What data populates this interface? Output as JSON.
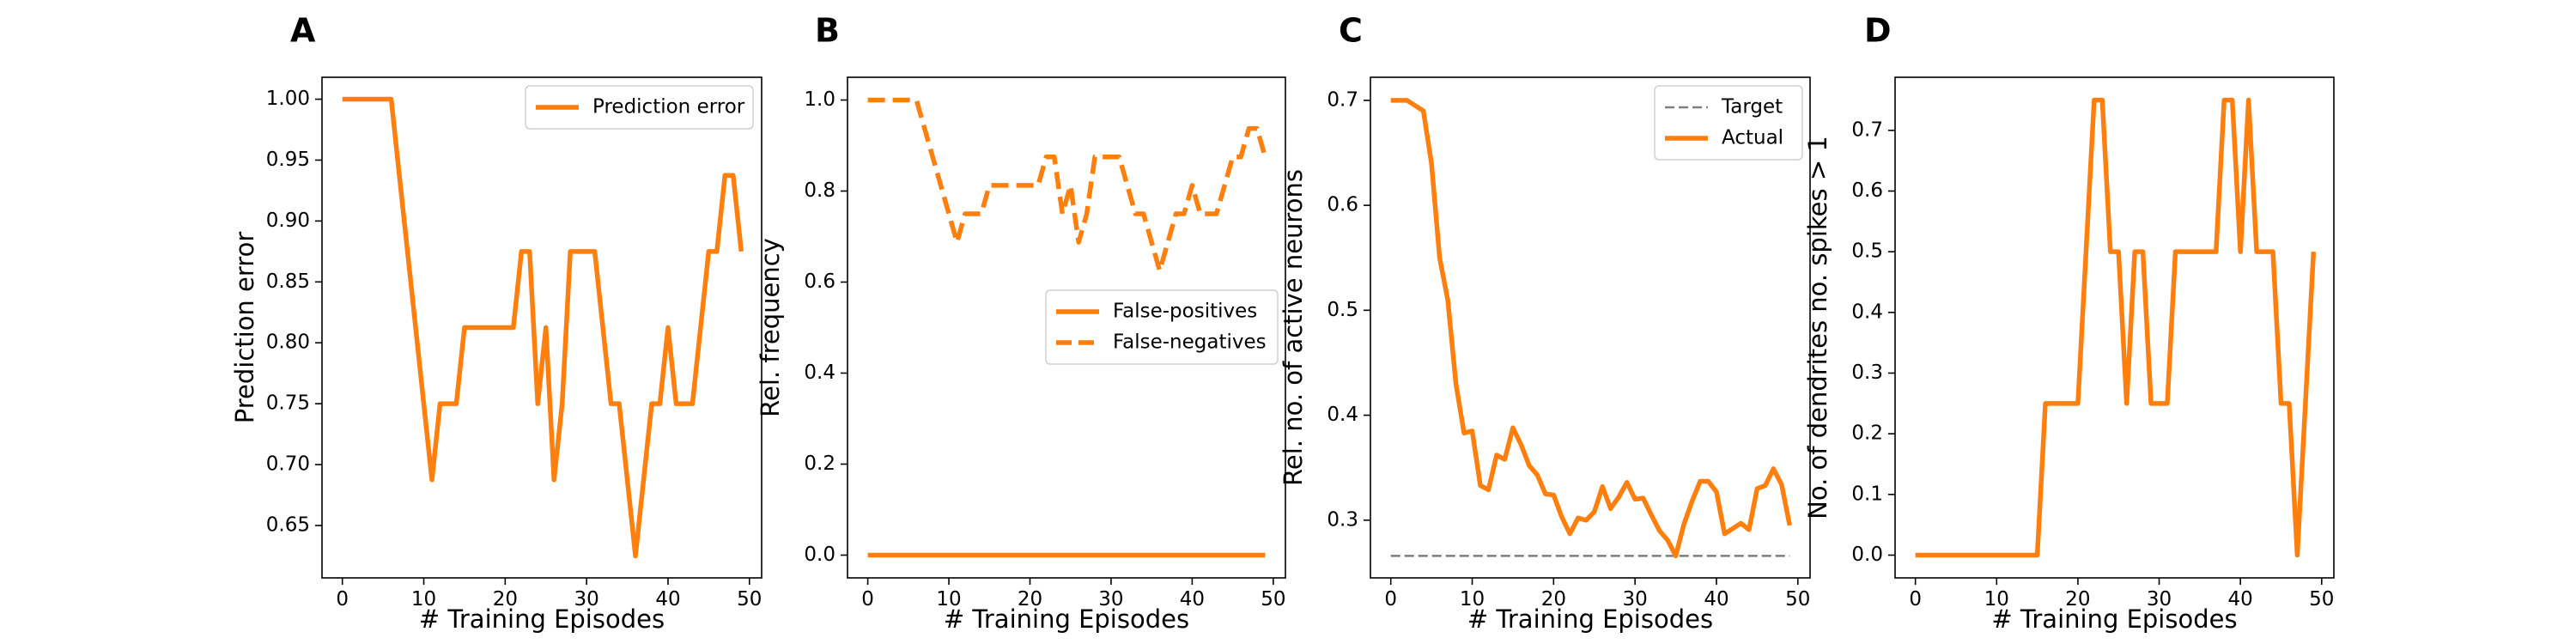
{
  "chart_data": [
    {
      "letter": "A",
      "type": "line",
      "xlabel": "# Training Episodes",
      "ylabel": "Prediction error",
      "xlim": [
        -2.5,
        51.5
      ],
      "ylim": [
        0.607,
        1.018
      ],
      "xticks": [
        0,
        10,
        20,
        30,
        40,
        50
      ],
      "yticks": [
        0.65,
        0.7,
        0.75,
        0.8,
        0.85,
        0.9,
        0.95,
        1.0
      ],
      "ytick_labels": [
        "0.65",
        "0.70",
        "0.75",
        "0.80",
        "0.85",
        "0.90",
        "0.95",
        "1.00"
      ],
      "grid": false,
      "legend_position": "top-right",
      "series": [
        {
          "name": "Prediction error",
          "color": "#ff7f0e",
          "dash": "solid",
          "x": [
            0,
            1,
            2,
            3,
            4,
            5,
            6,
            7,
            8,
            9,
            10,
            11,
            12,
            13,
            14,
            15,
            16,
            17,
            18,
            19,
            20,
            21,
            22,
            23,
            24,
            25,
            26,
            27,
            28,
            29,
            30,
            31,
            32,
            33,
            34,
            35,
            36,
            37,
            38,
            39,
            40,
            41,
            42,
            43,
            44,
            45,
            46,
            47,
            48,
            49
          ],
          "y": [
            1.0,
            1.0,
            1.0,
            1.0,
            1.0,
            1.0,
            1.0,
            0.9375,
            0.875,
            0.8125,
            0.75,
            0.6875,
            0.75,
            0.75,
            0.75,
            0.8125,
            0.8125,
            0.8125,
            0.8125,
            0.8125,
            0.8125,
            0.8125,
            0.875,
            0.875,
            0.75,
            0.8125,
            0.6875,
            0.75,
            0.875,
            0.875,
            0.875,
            0.875,
            0.8125,
            0.75,
            0.75,
            0.6875,
            0.625,
            0.6875,
            0.75,
            0.75,
            0.8125,
            0.75,
            0.75,
            0.75,
            0.8125,
            0.875,
            0.875,
            0.9375,
            0.9375,
            0.875
          ]
        }
      ]
    },
    {
      "letter": "B",
      "type": "line",
      "xlabel": "# Training Episodes",
      "ylabel": "Rel. frequency",
      "xlim": [
        -2.5,
        51.5
      ],
      "ylim": [
        -0.05,
        1.05
      ],
      "xticks": [
        0,
        10,
        20,
        30,
        40,
        50
      ],
      "yticks": [
        0.0,
        0.2,
        0.4,
        0.6,
        0.8,
        1.0
      ],
      "ytick_labels": [
        "0.0",
        "0.2",
        "0.4",
        "0.6",
        "0.8",
        "1.0"
      ],
      "grid": false,
      "legend_position": "center-right",
      "series": [
        {
          "name": "False-positives",
          "color": "#ff7f0e",
          "dash": "solid",
          "x": [
            0,
            49
          ],
          "y": [
            0.0,
            0.0
          ]
        },
        {
          "name": "False-negatives",
          "color": "#ff7f0e",
          "dash": "dashed",
          "x": [
            0,
            1,
            2,
            3,
            4,
            5,
            6,
            7,
            8,
            9,
            10,
            11,
            12,
            13,
            14,
            15,
            16,
            17,
            18,
            19,
            20,
            21,
            22,
            23,
            24,
            25,
            26,
            27,
            28,
            29,
            30,
            31,
            32,
            33,
            34,
            35,
            36,
            37,
            38,
            39,
            40,
            41,
            42,
            43,
            44,
            45,
            46,
            47,
            48,
            49
          ],
          "y": [
            1.0,
            1.0,
            1.0,
            1.0,
            1.0,
            1.0,
            1.0,
            0.9375,
            0.875,
            0.8125,
            0.75,
            0.6875,
            0.75,
            0.75,
            0.75,
            0.8125,
            0.8125,
            0.8125,
            0.8125,
            0.8125,
            0.8125,
            0.8125,
            0.875,
            0.875,
            0.75,
            0.8125,
            0.6875,
            0.75,
            0.875,
            0.875,
            0.875,
            0.875,
            0.8125,
            0.75,
            0.75,
            0.6875,
            0.625,
            0.6875,
            0.75,
            0.75,
            0.8125,
            0.75,
            0.75,
            0.75,
            0.8125,
            0.875,
            0.875,
            0.9375,
            0.9375,
            0.875
          ]
        }
      ]
    },
    {
      "letter": "C",
      "type": "line",
      "xlabel": "# Training Episodes",
      "ylabel": "Rel. no. of active neurons",
      "xlim": [
        -2.5,
        51.5
      ],
      "ylim": [
        0.245,
        0.722
      ],
      "xticks": [
        0,
        10,
        20,
        30,
        40,
        50
      ],
      "yticks": [
        0.3,
        0.4,
        0.5,
        0.6,
        0.7
      ],
      "ytick_labels": [
        "0.3",
        "0.4",
        "0.5",
        "0.6",
        "0.7"
      ],
      "grid": false,
      "legend_position": "top-right",
      "series": [
        {
          "name": "Target",
          "color": "#7f7f7f",
          "dash": "dashed",
          "x": [
            0,
            49
          ],
          "y": [
            0.266,
            0.266
          ]
        },
        {
          "name": "Actual",
          "color": "#ff7f0e",
          "dash": "solid",
          "x": [
            0,
            1,
            2,
            3,
            4,
            5,
            6,
            7,
            8,
            9,
            10,
            11,
            12,
            13,
            14,
            15,
            16,
            17,
            18,
            19,
            20,
            21,
            22,
            23,
            24,
            25,
            26,
            27,
            28,
            29,
            30,
            31,
            32,
            33,
            34,
            35,
            36,
            37,
            38,
            39,
            40,
            41,
            42,
            43,
            44,
            45,
            46,
            47,
            48,
            49
          ],
          "y": [
            0.7,
            0.7,
            0.7,
            0.695,
            0.69,
            0.64,
            0.55,
            0.51,
            0.43,
            0.383,
            0.385,
            0.333,
            0.329,
            0.362,
            0.358,
            0.388,
            0.372,
            0.352,
            0.343,
            0.325,
            0.324,
            0.303,
            0.287,
            0.302,
            0.3,
            0.308,
            0.332,
            0.311,
            0.322,
            0.336,
            0.32,
            0.321,
            0.305,
            0.29,
            0.281,
            0.266,
            0.296,
            0.318,
            0.337,
            0.337,
            0.327,
            0.287,
            0.292,
            0.297,
            0.291,
            0.33,
            0.333,
            0.349,
            0.334,
            0.295
          ]
        }
      ]
    },
    {
      "letter": "D",
      "type": "line",
      "xlabel": "# Training Episodes",
      "ylabel": "No. of dendrites no. spikes > 1",
      "xlim": [
        -2.5,
        51.5
      ],
      "ylim": [
        -0.0375,
        0.7875
      ],
      "xticks": [
        0,
        10,
        20,
        30,
        40,
        50
      ],
      "yticks": [
        0.0,
        0.1,
        0.2,
        0.3,
        0.4,
        0.5,
        0.6,
        0.7
      ],
      "ytick_labels": [
        "0.0",
        "0.1",
        "0.2",
        "0.3",
        "0.4",
        "0.5",
        "0.6",
        "0.7"
      ],
      "grid": false,
      "legend_position": "none",
      "series": [
        {
          "color": "#ff7f0e",
          "dash": "solid",
          "x": [
            0,
            1,
            2,
            3,
            4,
            5,
            6,
            7,
            8,
            9,
            10,
            11,
            12,
            13,
            14,
            15,
            16,
            17,
            18,
            19,
            20,
            21,
            22,
            23,
            24,
            25,
            26,
            27,
            28,
            29,
            30,
            31,
            32,
            33,
            34,
            35,
            36,
            37,
            38,
            39,
            40,
            41,
            42,
            43,
            44,
            45,
            46,
            47,
            48,
            49
          ],
          "y": [
            0.0,
            0.0,
            0.0,
            0.0,
            0.0,
            0.0,
            0.0,
            0.0,
            0.0,
            0.0,
            0.0,
            0.0,
            0.0,
            0.0,
            0.0,
            0.0,
            0.25,
            0.25,
            0.25,
            0.25,
            0.25,
            0.5,
            0.75,
            0.75,
            0.5,
            0.5,
            0.25,
            0.5,
            0.5,
            0.25,
            0.25,
            0.25,
            0.5,
            0.5,
            0.5,
            0.5,
            0.5,
            0.5,
            0.75,
            0.75,
            0.5,
            0.75,
            0.5,
            0.5,
            0.5,
            0.25,
            0.25,
            0.0,
            0.25,
            0.5
          ]
        }
      ]
    }
  ]
}
